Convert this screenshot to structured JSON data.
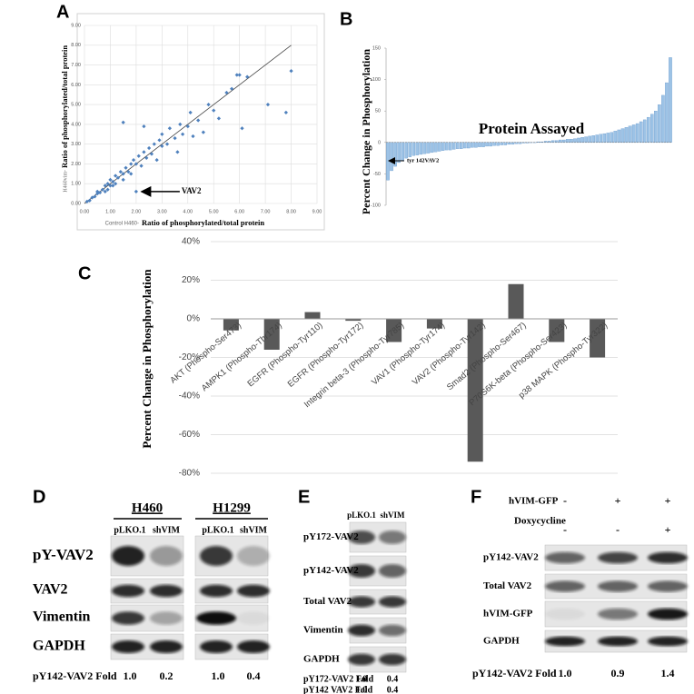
{
  "chart_data": [
    {
      "type": "scatter",
      "panel": "A",
      "y_label_prefix": "H460vim-",
      "y_label": "Ratio of phosphorylated/total protein",
      "x_label_prefix": "Control H460-",
      "x_label": "Ratio of phosphorylated/total protein",
      "annotation": "VAV2",
      "annotation_x": 2.0,
      "annotation_y": 0.6,
      "color": "#4f81bd",
      "grid": true,
      "xlim": [
        0,
        9
      ],
      "ylim": [
        0,
        9
      ],
      "xticks": [
        {
          "value": 0,
          "label": "0.00"
        },
        {
          "value": 1,
          "label": "1.00"
        },
        {
          "value": 2,
          "label": "2.00"
        },
        {
          "value": 3,
          "label": "3.00"
        },
        {
          "value": 4,
          "label": "4.00"
        },
        {
          "value": 5,
          "label": "5.00"
        },
        {
          "value": 6,
          "label": "6.00"
        },
        {
          "value": 7,
          "label": "7.00"
        },
        {
          "value": 8,
          "label": "8.00"
        },
        {
          "value": 9,
          "label": "9.00"
        }
      ],
      "yticks": [
        {
          "value": 0,
          "label": "0.00"
        },
        {
          "value": 1,
          "label": "1.00"
        },
        {
          "value": 2,
          "label": "2.00"
        },
        {
          "value": 3,
          "label": "3.00"
        },
        {
          "value": 4,
          "label": "4.00"
        },
        {
          "value": 5,
          "label": "5.00"
        },
        {
          "value": 6,
          "label": "6.00"
        },
        {
          "value": 7,
          "label": "7.00"
        },
        {
          "value": 8,
          "label": "8.00"
        },
        {
          "value": 9,
          "label": "9.00"
        }
      ],
      "x": [
        0.1,
        0.2,
        0.3,
        0.4,
        0.5,
        0.5,
        0.6,
        0.7,
        0.8,
        0.8,
        0.9,
        1.0,
        1.0,
        1.1,
        1.2,
        1.2,
        1.3,
        1.4,
        1.5,
        1.5,
        1.6,
        1.7,
        1.8,
        1.8,
        1.9,
        2.0,
        2.0,
        2.1,
        2.2,
        2.3,
        2.4,
        2.5,
        2.6,
        2.7,
        2.8,
        2.9,
        3.0,
        3.0,
        3.2,
        3.3,
        3.5,
        3.6,
        3.7,
        3.8,
        4.0,
        4.1,
        4.2,
        4.4,
        4.6,
        4.8,
        5.0,
        5.2,
        5.5,
        5.7,
        5.9,
        6.0,
        6.1,
        6.3,
        7.1,
        7.8,
        8.0,
        1.5,
        2.3,
        0.9,
        1.1
      ],
      "y": [
        0.1,
        0.15,
        0.3,
        0.35,
        0.5,
        0.6,
        0.55,
        0.7,
        0.9,
        0.6,
        1.0,
        0.9,
        1.2,
        1.1,
        1.4,
        1.0,
        1.3,
        1.6,
        1.5,
        1.2,
        1.8,
        1.6,
        2.0,
        1.5,
        2.2,
        0.6,
        2.0,
        2.4,
        1.9,
        2.6,
        2.3,
        2.8,
        2.5,
        3.0,
        2.2,
        3.2,
        2.9,
        3.5,
        3.0,
        3.8,
        3.3,
        2.6,
        4.0,
        3.5,
        3.9,
        4.6,
        3.4,
        4.2,
        3.6,
        5.0,
        4.7,
        4.3,
        5.6,
        5.8,
        6.5,
        6.5,
        3.8,
        6.4,
        5.0,
        4.6,
        6.7,
        4.1,
        3.9,
        0.7,
        0.9
      ],
      "line_x": [
        0,
        8
      ],
      "line_y": [
        0,
        8
      ]
    },
    {
      "type": "bar",
      "panel": "B",
      "y_label": "Percent Change in Phosphorylation",
      "annotation": "Protein Assayed",
      "arrow_label": "tyr 142VAV2",
      "color": "#9dc3e6",
      "ylim": [
        -100,
        150
      ],
      "yticks": [
        -100,
        -50,
        0,
        50,
        100,
        150
      ],
      "categories": [
        null,
        null,
        null,
        null,
        null,
        null,
        null,
        null,
        null,
        null,
        null,
        null,
        null,
        null,
        null,
        null,
        null,
        null,
        null,
        null,
        null,
        null,
        null,
        null,
        null,
        null,
        null,
        null,
        null,
        null,
        null,
        null,
        null,
        null,
        null,
        null,
        null,
        null,
        null,
        null,
        null,
        null,
        null,
        null,
        null,
        null,
        null,
        null,
        null,
        null,
        null,
        null,
        null,
        null,
        null,
        null,
        null,
        null,
        null,
        null,
        null,
        null,
        null,
        null,
        null,
        null,
        null,
        null,
        null,
        null,
        null,
        null,
        null,
        null,
        null,
        null,
        null,
        null
      ],
      "values": [
        -60,
        -45,
        -38,
        -32,
        -28,
        -25,
        -23,
        -21,
        -20,
        -19,
        -18,
        -17,
        -16,
        -15,
        -14,
        -13,
        -12,
        -12,
        -11,
        -10,
        -10,
        -9,
        -9,
        -8,
        -8,
        -7,
        -7,
        -6,
        -6,
        -5,
        -5,
        -4,
        -4,
        -3,
        -3,
        -2,
        -2,
        -1,
        -1,
        0,
        0,
        1,
        1,
        2,
        2,
        3,
        3,
        4,
        4,
        5,
        5,
        6,
        7,
        8,
        9,
        10,
        11,
        12,
        13,
        14,
        15,
        16,
        18,
        20,
        22,
        24,
        26,
        28,
        30,
        33,
        36,
        40,
        45,
        50,
        60,
        75,
        95,
        135
      ]
    },
    {
      "type": "bar",
      "panel": "C",
      "y_label": "Percent Change in Phosphorylation",
      "color": "#595959",
      "ylim": [
        -80,
        40
      ],
      "yticks": [
        {
          "value": -80,
          "label": "-80%"
        },
        {
          "value": -60,
          "label": "-60%"
        },
        {
          "value": -40,
          "label": "-40%"
        },
        {
          "value": -20,
          "label": "-20%"
        },
        {
          "value": 0,
          "label": "0%"
        },
        {
          "value": 20,
          "label": "20%"
        },
        {
          "value": 40,
          "label": "40%"
        }
      ],
      "categories": [
        "AKT (Phospho-Ser473)",
        "AMPK1 (Phospho-Thr174)",
        "EGFR (Phospho-Tyr110)",
        "EGFR (Phospho-Tyr172)",
        "Integrin beta-3 (Phospho-Tyr785)",
        "VAV1 (Phospho-Tyr174)",
        "VAV2 (Phospho-Tyr142)",
        "Smad2 (Phospho-Ser467)",
        "P70S6K-beta (Phospho-Ser423)",
        "p38 MAPK (Phospho-Tyr322)"
      ],
      "values": [
        -6,
        -16,
        3.5,
        -1,
        -12,
        -5,
        -74,
        18,
        -12,
        -20
      ]
    }
  ],
  "blot_d": {
    "panel": "D",
    "cell_lines": [
      "H460",
      "H1299"
    ],
    "lanes": [
      "pLKO.1",
      "shVIM",
      "pLKO.1",
      "shVIM"
    ],
    "rows": [
      "pY-VAV2",
      "VAV2",
      "Vimentin",
      "GAPDH"
    ],
    "fold_label": "pY142-VAV2 Fold",
    "folds": [
      "1.0",
      "0.2",
      "1.0",
      "0.4"
    ]
  },
  "blot_e": {
    "panel": "E",
    "lanes": [
      "pLKO.1",
      "shVIM"
    ],
    "rows": [
      "pY172-VAV2",
      "pY142-VAV2",
      "Total VAV2",
      "Vimentin",
      "GAPDH"
    ],
    "fold_rows": [
      {
        "label": "pY172-VAV2 Fold",
        "folds": [
          "1.0",
          "0.4"
        ]
      },
      {
        "label": "pY142 VAV2 Fold",
        "folds": [
          "1.0",
          "0.4"
        ]
      }
    ]
  },
  "blot_f": {
    "panel": "F",
    "conditions": [
      {
        "label": "hVIM-GFP",
        "signs": [
          "-",
          "+",
          "+"
        ]
      },
      {
        "label": "Doxycycline",
        "signs": [
          "-",
          "-",
          "+"
        ]
      }
    ],
    "rows": [
      "pY142-VAV2",
      "Total VAV2",
      "hVIM-GFP",
      "GAPDH"
    ],
    "fold_label": "pY142-VAV2 Fold",
    "folds": [
      "1.0",
      "0.9",
      "1.4"
    ]
  }
}
